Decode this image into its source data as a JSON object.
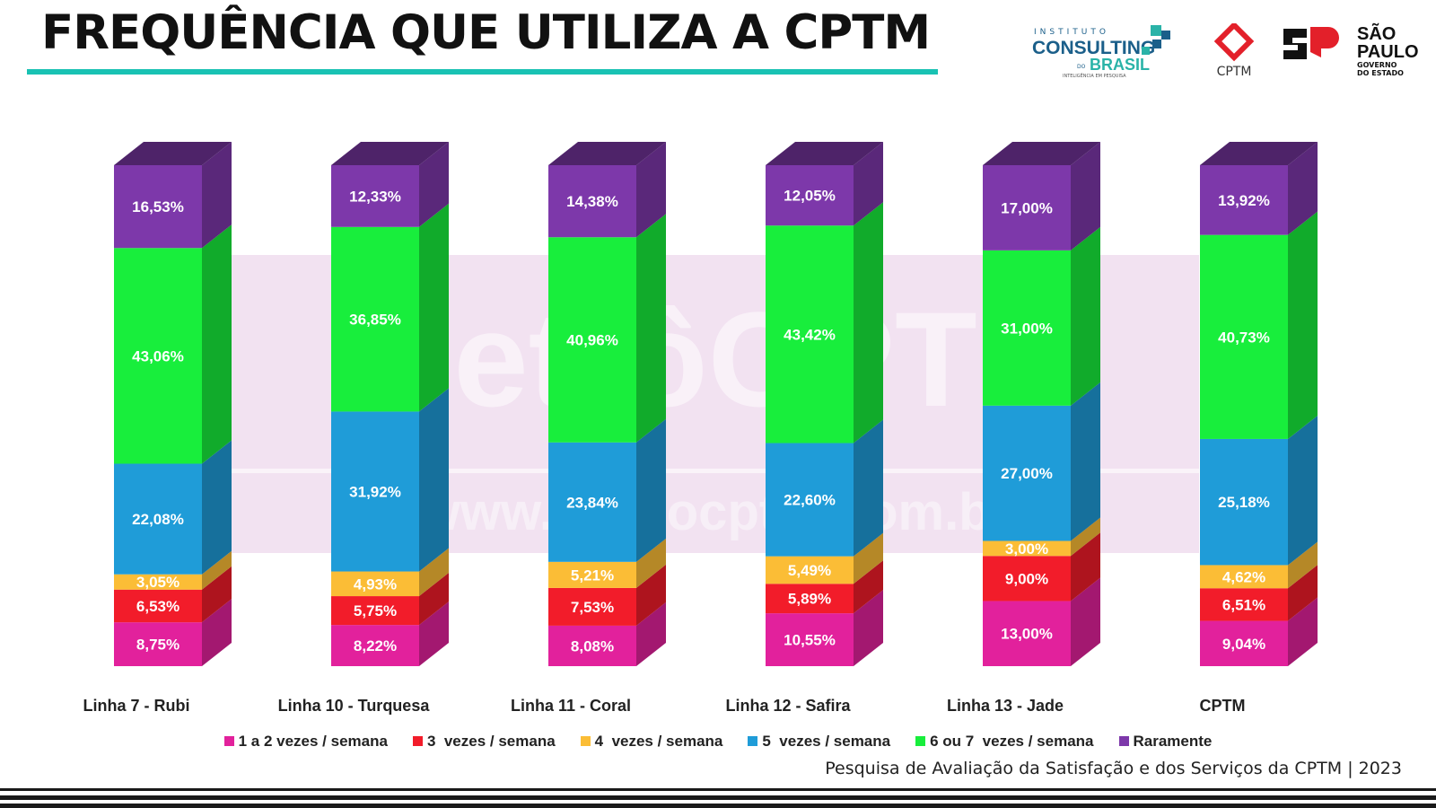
{
  "header": {
    "title": "FREQUÊNCIA QUE UTILIZA A CPTM",
    "accent_color": "#19c2b3"
  },
  "logos": {
    "consulting": {
      "small_top": "INSTITUTO",
      "main": "CONSULTING",
      "sub": "BRASIL",
      "prefix": "DO",
      "tagline": "INTELIGÊNCIA EM PESQUISA"
    },
    "cptm": {
      "label": "CPTM"
    },
    "sp": {
      "line1": "SÃO",
      "line2": "PAULO",
      "line3": "GOVERNO",
      "line4": "DO ESTADO"
    }
  },
  "watermark": {
    "line1": "MetrôCPTM",
    "line2": "www.metrocptm.com.br"
  },
  "source_note": "Pesquisa de Avaliação da Satisfação e dos Serviços da CPTM | 2023",
  "chart_data": {
    "type": "bar",
    "stacked": true,
    "style": "3d",
    "title": "",
    "xlabel": "",
    "ylabel": "",
    "ylim": [
      0,
      100
    ],
    "grid": false,
    "legend_position": "bottom",
    "categories": [
      "Linha 7 - Rubi",
      "Linha 10 - Turquesa",
      "Linha 11 - Coral",
      "Linha 12 - Safira",
      "Linha 13 - Jade",
      "CPTM"
    ],
    "series": [
      {
        "name": "1 a 2 vezes / semana",
        "color": "#e2219c",
        "values": [
          8.75,
          8.22,
          8.08,
          10.55,
          13.0,
          9.04
        ],
        "labels": [
          "8,75%",
          "8,22%",
          "8,08%",
          "10,55%",
          "13,00%",
          "9,04%"
        ]
      },
      {
        "name": "3  vezes / semana",
        "color": "#f21c2a",
        "values": [
          6.53,
          5.75,
          7.53,
          5.89,
          9.0,
          6.51
        ],
        "labels": [
          "6,53%",
          "5,75%",
          "7,53%",
          "5,89%",
          "9,00%",
          "6,51%"
        ]
      },
      {
        "name": "4  vezes / semana",
        "color": "#fbbd36",
        "values": [
          3.05,
          4.93,
          5.21,
          5.49,
          3.0,
          4.62
        ],
        "labels": [
          "3,05%",
          "4,93%",
          "5,21%",
          "5,49%",
          "3,00%",
          "4,62%"
        ]
      },
      {
        "name": "5  vezes / semana",
        "color": "#1f9cd8",
        "values": [
          22.08,
          31.92,
          23.84,
          22.6,
          27.0,
          25.18
        ],
        "labels": [
          "22,08%",
          "31,92%",
          "23,84%",
          "22,60%",
          "27,00%",
          "25,18%"
        ]
      },
      {
        "name": "6 ou 7  vezes / semana",
        "color": "#18ee3c",
        "values": [
          43.06,
          36.85,
          40.96,
          43.42,
          31.0,
          40.73
        ],
        "labels": [
          "43,06%",
          "36,85%",
          "40,96%",
          "43,42%",
          "31,00%",
          "40,73%"
        ]
      },
      {
        "name": "Raramente",
        "color": "#7d38aa",
        "values": [
          16.53,
          12.33,
          14.38,
          12.05,
          17.0,
          13.92
        ],
        "labels": [
          "16,53%",
          "12,33%",
          "14,38%",
          "12,05%",
          "17,00%",
          "13,92%"
        ]
      }
    ]
  }
}
